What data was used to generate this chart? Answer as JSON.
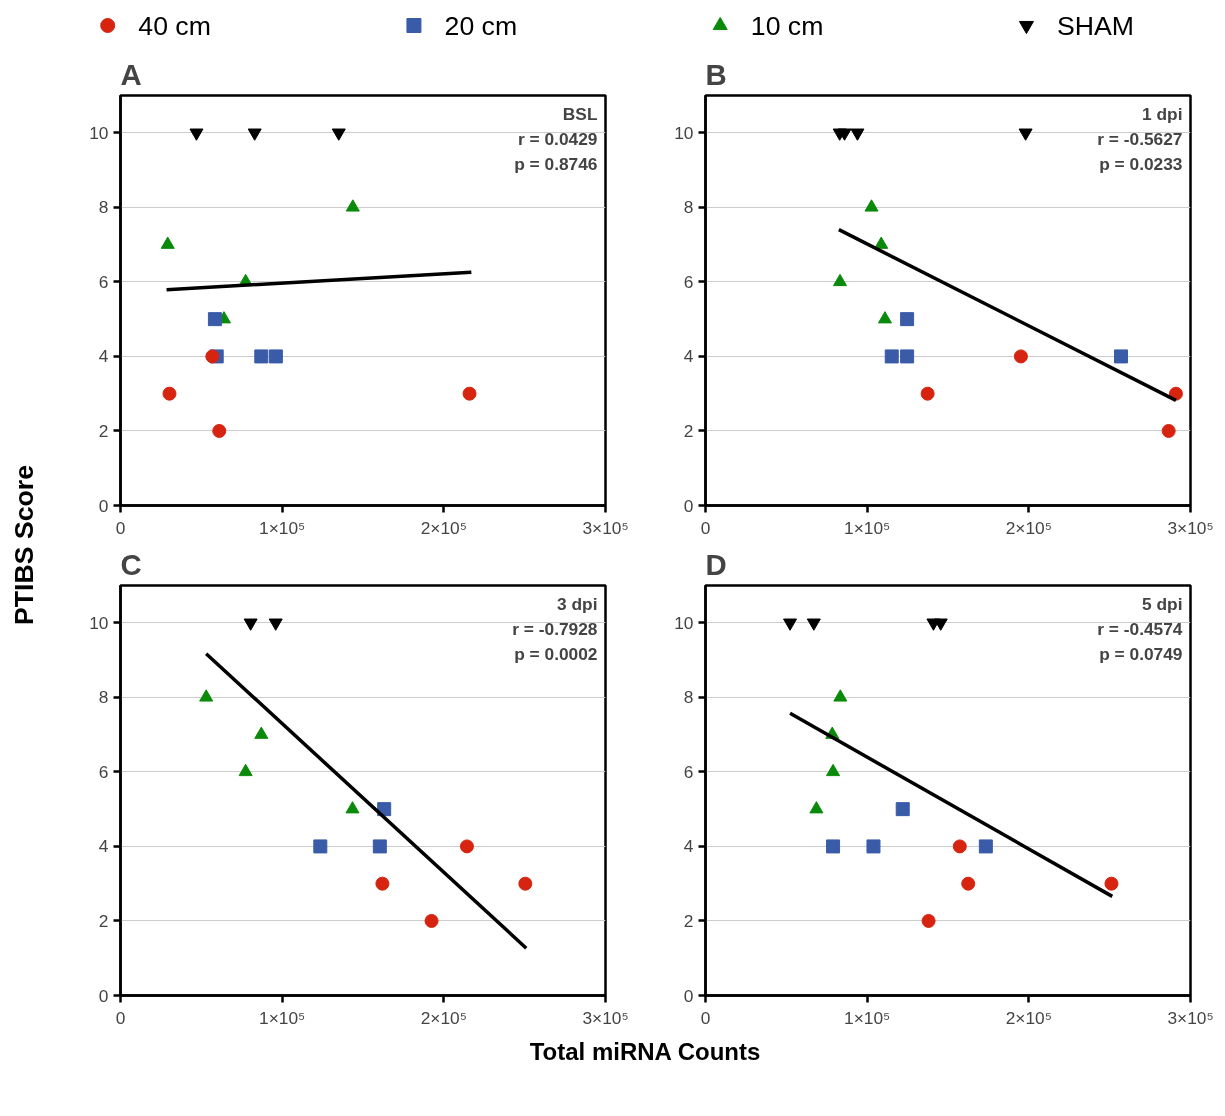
{
  "chart_data": [
    {
      "type": "scatter",
      "title": "A",
      "ylabel": "PTIBS Score",
      "legend": "top",
      "grid": "y",
      "xlim": [
        0,
        300000
      ],
      "ylim": [
        0,
        11
      ],
      "xticks": [
        0,
        {
          "value": 100000,
          "label": "1×10⁵"
        },
        {
          "value": 200000,
          "label": "2×10⁵"
        },
        {
          "value": 300000,
          "label": "3×10⁵"
        }
      ],
      "yticks": [
        0,
        2,
        4,
        6,
        8,
        10
      ],
      "annotations": [
        "BSL\nr = 0.0429\np = 0.8746"
      ],
      "series": [
        {
          "name": "40 cm",
          "color": "#d62410",
          "marker": "circle",
          "x": [
            30300,
            56800,
            61100,
            215900
          ],
          "values": [
            3,
            4,
            2,
            3
          ]
        },
        {
          "name": "20 cm",
          "color": "#3a5ba8",
          "marker": "square",
          "x": [
            58400,
            59500,
            87100,
            96100
          ],
          "values": [
            5,
            4,
            4,
            4
          ]
        },
        {
          "name": "10 cm",
          "color": "#0a8a0a",
          "marker": "triangle",
          "x": [
            29200,
            77400,
            64000,
            143700
          ],
          "values": [
            7,
            6,
            5,
            8
          ]
        },
        {
          "name": "SHAM",
          "color": "#000000",
          "x": [
            47000,
            83000,
            135000
          ],
          "values": [
            10,
            10,
            10
          ]
        },
        {
          "type": "line",
          "color": "#000000",
          "marker": "none",
          "x": [
            28500,
            217000
          ],
          "values": [
            5.79,
            6.26
          ]
        }
      ]
    },
    {
      "type": "scatter",
      "title": "B",
      "grid": "y",
      "xlim": [
        0,
        300000
      ],
      "ylim": [
        0,
        11
      ],
      "xticks": [
        0,
        {
          "value": 100000,
          "label": "1×10⁵"
        },
        {
          "value": 200000,
          "label": "2×10⁵"
        },
        {
          "value": 300000,
          "label": "3×10⁵"
        }
      ],
      "yticks": [
        0,
        2,
        4,
        6,
        8,
        10
      ],
      "annotations": [
        "1 dpi\nr = -0.5627\np = 0.0233"
      ],
      "series": [
        {
          "color": "#d62410",
          "marker": "circle",
          "x": [
            137400,
            195100,
            291000,
            286500
          ],
          "values": [
            3,
            4,
            3,
            2
          ]
        },
        {
          "color": "#3a5ba8",
          "marker": "square",
          "x": [
            124700,
            115200,
            124700,
            257000
          ],
          "values": [
            5,
            4,
            4,
            4
          ]
        },
        {
          "color": "#0a8a0a",
          "marker": "triangle",
          "x": [
            102700,
            108700,
            83200,
            111000
          ],
          "values": [
            8,
            7,
            6,
            5
          ]
        },
        {
          "color": "#000000",
          "x": [
            83000,
            86000,
            94000,
            198000
          ],
          "values": [
            10,
            10,
            10,
            10
          ]
        },
        {
          "type": "line",
          "color": "#000000",
          "marker": "none",
          "x": [
            82500,
            291000
          ],
          "values": [
            7.4,
            2.82
          ]
        }
      ]
    },
    {
      "type": "scatter",
      "title": "C",
      "xlabel": "Total miRNA Counts",
      "grid": "y",
      "xlim": [
        0,
        300000
      ],
      "ylim": [
        0,
        11
      ],
      "xticks": [
        0,
        {
          "value": 100000,
          "label": "1×10⁵"
        },
        {
          "value": 200000,
          "label": "2×10⁵"
        },
        {
          "value": 300000,
          "label": "3×10⁵"
        }
      ],
      "yticks": [
        0,
        2,
        4,
        6,
        8,
        10
      ],
      "annotations": [
        "3 dpi\nr = -0.7928\np = 0.0002"
      ],
      "series": [
        {
          "color": "#d62410",
          "marker": "circle",
          "x": [
            162000,
            214300,
            192400,
            250400
          ],
          "values": [
            3,
            4,
            2,
            3
          ]
        },
        {
          "color": "#3a5ba8",
          "marker": "square",
          "x": [
            163100,
            123600,
            160400
          ],
          "values": [
            5,
            4,
            4
          ]
        },
        {
          "color": "#0a8a0a",
          "marker": "triangle",
          "x": [
            53000,
            87100,
            77400,
            143500
          ],
          "values": [
            8,
            7,
            6,
            5
          ]
        },
        {
          "color": "#000000",
          "x": [
            80500,
            96000
          ],
          "values": [
            10,
            10
          ]
        },
        {
          "type": "line",
          "color": "#000000",
          "marker": "none",
          "x": [
            53000,
            251000
          ],
          "values": [
            9.17,
            1.27
          ]
        }
      ]
    },
    {
      "type": "scatter",
      "title": "D",
      "grid": "y",
      "xlim": [
        0,
        300000
      ],
      "ylim": [
        0,
        11
      ],
      "xticks": [
        0,
        {
          "value": 100000,
          "label": "1×10⁵"
        },
        {
          "value": 200000,
          "label": "2×10⁵"
        },
        {
          "value": 300000,
          "label": "3×10⁵"
        }
      ],
      "yticks": [
        0,
        2,
        4,
        6,
        8,
        10
      ],
      "annotations": [
        "5 dpi\nr = -0.4574\np = 0.0749"
      ],
      "series": [
        {
          "color": "#d62410",
          "marker": "circle",
          "x": [
            157300,
            162500,
            138000,
            251100
          ],
          "values": [
            4,
            3,
            2,
            3
          ]
        },
        {
          "color": "#3a5ba8",
          "marker": "square",
          "x": [
            122000,
            78900,
            103900,
            173400
          ],
          "values": [
            5,
            4,
            4,
            4
          ]
        },
        {
          "color": "#0a8a0a",
          "marker": "triangle",
          "x": [
            83400,
            78400,
            78900,
            68600
          ],
          "values": [
            8,
            7,
            6,
            5
          ]
        },
        {
          "color": "#000000",
          "x": [
            52300,
            67000,
            141000,
            145500
          ],
          "values": [
            10,
            10,
            10,
            10
          ]
        },
        {
          "type": "line",
          "color": "#000000",
          "marker": "none",
          "x": [
            52300,
            251600
          ],
          "values": [
            7.57,
            2.66
          ]
        }
      ]
    }
  ]
}
